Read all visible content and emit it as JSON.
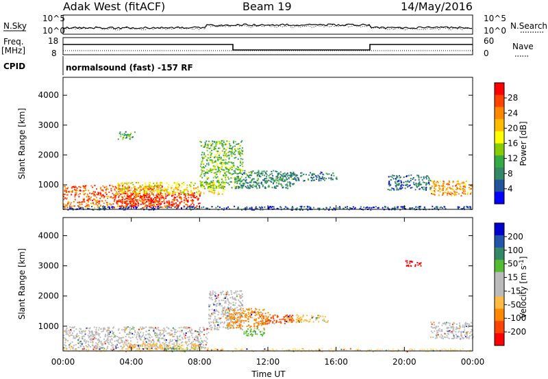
{
  "header": {
    "station": "Adak West (fitACF)",
    "beam": "Beam 19",
    "date": "14/May/2016"
  },
  "top_panels": {
    "nsky_label": "N.Sky",
    "nsearch_label": "N.Search",
    "noise_ticks_left": [
      "10^5",
      "10^0"
    ],
    "noise_ticks_right": [
      "10^5",
      "10^0"
    ],
    "freq_label": "Freq.",
    "freq_unit": "[MHz]",
    "freq_ticks": [
      "18",
      "8"
    ],
    "nave_label": "Nave",
    "nave_ticks": [
      "60",
      "0"
    ],
    "cpid_label": "CPID",
    "cpid_text": "normalsound (fast) -157 RF"
  },
  "chart_data": [
    {
      "type": "heatmap",
      "name": "power",
      "ylabel": "Slant Range [km]",
      "xlabel": "Time UT",
      "x_ticks": [
        "00:00",
        "04:00",
        "08:00",
        "12:00",
        "16:00",
        "20:00",
        "00:00"
      ],
      "y_ticks": [
        "1000",
        "2000",
        "3000",
        "4000"
      ],
      "ylim": [
        180,
        4600
      ],
      "xlim_hours": [
        0,
        24
      ],
      "colorbar_label": "Power [dB]",
      "colorbar_ticks": [
        "28",
        "24",
        "20",
        "16",
        "12",
        "8",
        "4"
      ],
      "colorbar_colors": [
        "#ff0000",
        "#ff4400",
        "#ff8800",
        "#ffbb00",
        "#ffff00",
        "#88cc00",
        "#33aa44",
        "#338866",
        "#225599",
        "#0000ff"
      ],
      "regions": [
        {
          "t0": 0.0,
          "t1": 5.8,
          "r0": 250,
          "r1": 1000,
          "level": 0.85
        },
        {
          "t0": 3.2,
          "t1": 8.0,
          "r0": 250,
          "r1": 750,
          "level": 0.95
        },
        {
          "t0": 3.0,
          "t1": 9.5,
          "r0": 700,
          "r1": 1100,
          "level": 0.6
        },
        {
          "t0": 8.0,
          "t1": 10.5,
          "r0": 900,
          "r1": 2500,
          "level": 0.4
        },
        {
          "t0": 10.0,
          "t1": 13.5,
          "r0": 900,
          "r1": 1500,
          "level": 0.25
        },
        {
          "t0": 12.5,
          "t1": 16.0,
          "r0": 1150,
          "r1": 1450,
          "level": 0.2
        },
        {
          "t0": 3.2,
          "t1": 4.2,
          "r0": 2550,
          "r1": 2800,
          "level": 0.3
        },
        {
          "t0": 21.5,
          "t1": 24.0,
          "r0": 650,
          "r1": 1150,
          "level": 0.75
        },
        {
          "t0": 19.0,
          "t1": 21.5,
          "r0": 850,
          "r1": 1350,
          "level": 0.15
        },
        {
          "t0": 0.0,
          "t1": 24.0,
          "r0": 180,
          "r1": 300,
          "level": 0.1
        }
      ]
    },
    {
      "type": "heatmap",
      "name": "velocity",
      "ylabel": "Slant Range [km]",
      "xlabel": "Time UT",
      "x_ticks": [
        "00:00",
        "04:00",
        "08:00",
        "12:00",
        "16:00",
        "20:00",
        "00:00"
      ],
      "y_ticks": [
        "1000",
        "2000",
        "3000",
        "4000"
      ],
      "ylim": [
        180,
        4600
      ],
      "xlim_hours": [
        0,
        24
      ],
      "colorbar_label": "Velocity [m s",
      "colorbar_label_sup": "-1",
      "colorbar_label_end": "]",
      "colorbar_ticks": [
        "200",
        "100",
        "50",
        "15",
        "-15",
        "-50",
        "-100",
        "-200"
      ],
      "colorbar_colors": [
        "#0000cc",
        "#2255aa",
        "#338866",
        "#55bb33",
        "#bbbbbb",
        "#bbbbbb",
        "#ffbb44",
        "#ff8800",
        "#ff4400",
        "#ff0000"
      ],
      "regions": [
        {
          "t0": 0.0,
          "t1": 8.5,
          "r0": 250,
          "r1": 1000,
          "color": "#bbbbbb"
        },
        {
          "t0": 3.5,
          "t1": 8.0,
          "r0": 250,
          "r1": 450,
          "color": "#ffbb44"
        },
        {
          "t0": 6.0,
          "t1": 8.0,
          "r0": 180,
          "r1": 300,
          "color": "#55bb33"
        },
        {
          "t0": 8.5,
          "t1": 10.5,
          "r0": 900,
          "r1": 2200,
          "color": "#bbbbbb"
        },
        {
          "t0": 9.5,
          "t1": 12.0,
          "r0": 950,
          "r1": 1600,
          "color": "#ff8800"
        },
        {
          "t0": 10.5,
          "t1": 11.8,
          "r0": 700,
          "r1": 950,
          "color": "#55bb33"
        },
        {
          "t0": 11.5,
          "t1": 13.5,
          "r0": 1100,
          "r1": 1400,
          "color": "#ff4400"
        },
        {
          "t0": 13.0,
          "t1": 15.5,
          "r0": 1150,
          "r1": 1400,
          "color": "#ffbb44"
        },
        {
          "t0": 21.5,
          "t1": 24.0,
          "r0": 600,
          "r1": 1150,
          "color": "#bbbbbb"
        },
        {
          "t0": 20.0,
          "t1": 21.0,
          "r0": 3000,
          "r1": 3200,
          "color": "#ff0000"
        },
        {
          "t0": 0.0,
          "t1": 24.0,
          "r0": 180,
          "r1": 280,
          "color": "#ffdd88"
        }
      ]
    }
  ]
}
